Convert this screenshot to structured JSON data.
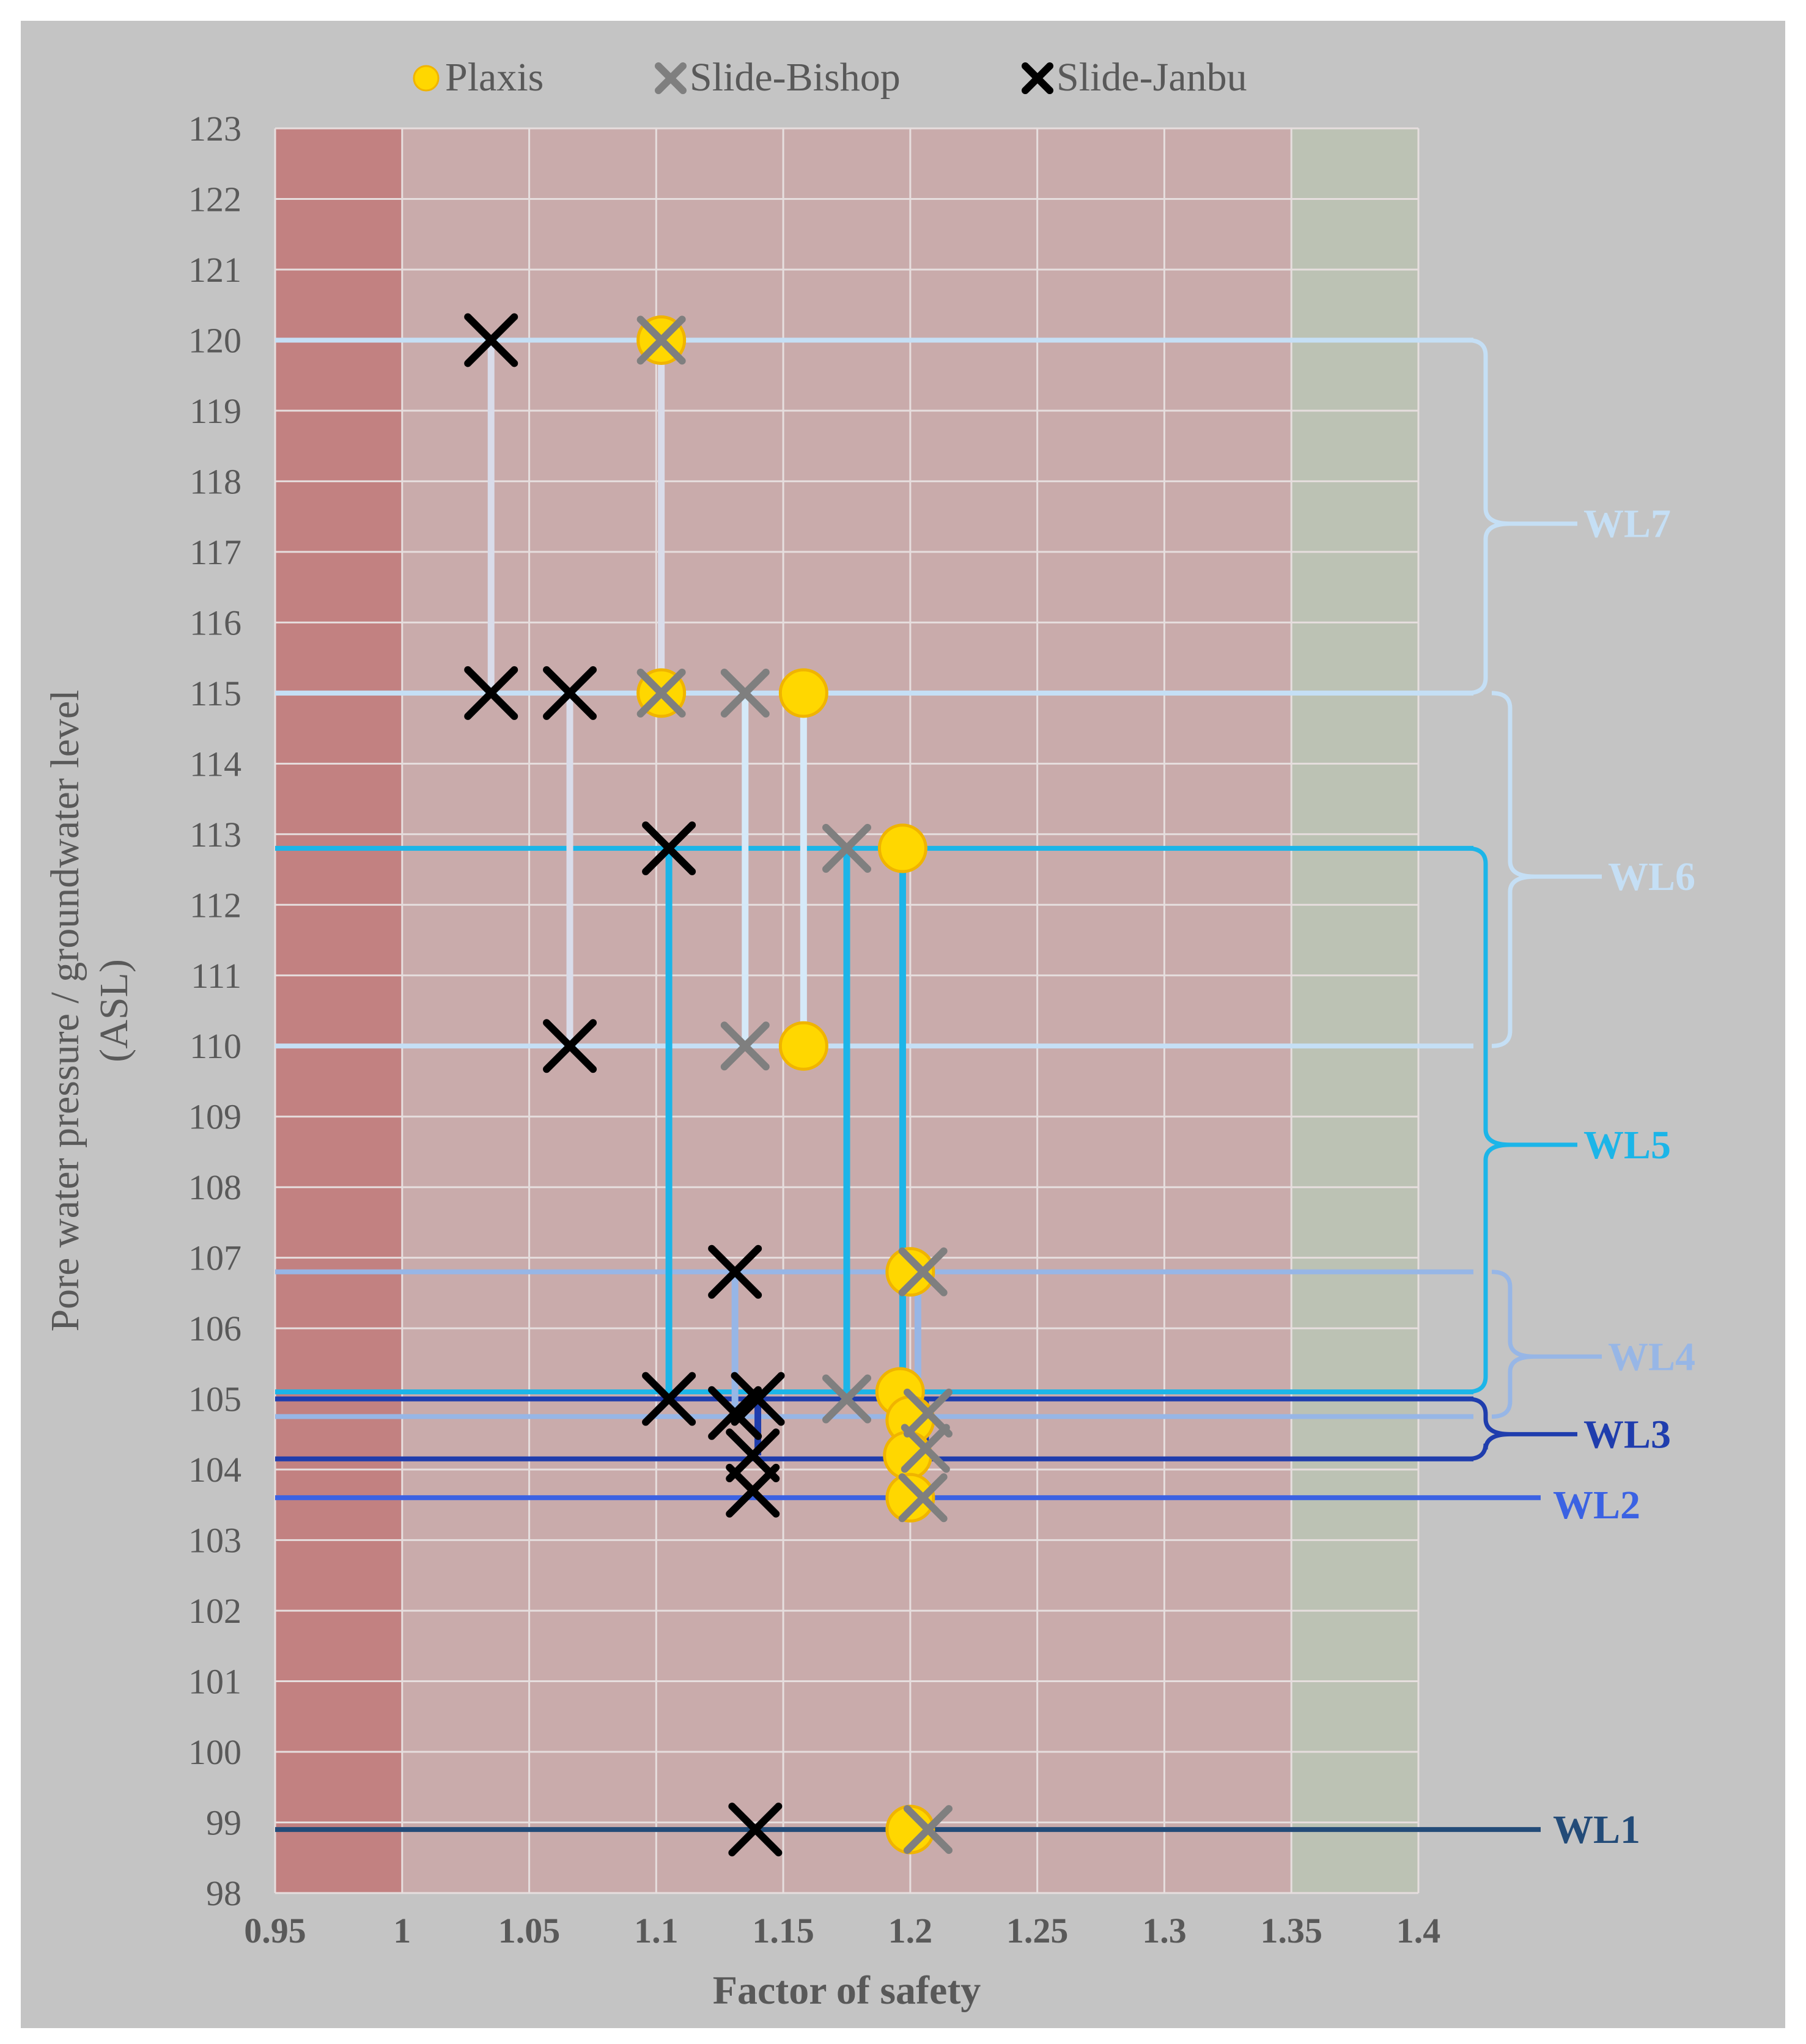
{
  "chart_data": {
    "type": "scatter",
    "title": "",
    "xlabel": "Factor of safety",
    "ylabel_lines": [
      "Pore water pressure / groundwater level",
      "(ASL)"
    ],
    "xlim": [
      0.95,
      1.4
    ],
    "ylim": [
      98,
      123
    ],
    "x_ticks": [
      0.95,
      1,
      1.05,
      1.1,
      1.15,
      1.2,
      1.25,
      1.3,
      1.35,
      1.4
    ],
    "x_tick_labels": [
      "0.95",
      "1",
      "1.05",
      "1.1",
      "1.15",
      "1.2",
      "1.25",
      "1.3",
      "1.35",
      "1.4"
    ],
    "y_ticks": [
      98,
      99,
      100,
      101,
      102,
      103,
      104,
      105,
      106,
      107,
      108,
      109,
      110,
      111,
      112,
      113,
      114,
      115,
      116,
      117,
      118,
      119,
      120,
      121,
      122,
      123
    ],
    "y_tick_labels": [
      "98",
      "99",
      "100",
      "101",
      "102",
      "103",
      "104",
      "105",
      "106",
      "107",
      "108",
      "109",
      "110",
      "111",
      "112",
      "113",
      "114",
      "115",
      "116",
      "117",
      "118",
      "119",
      "120",
      "121",
      "122",
      "123"
    ],
    "grid": true,
    "legend_placement": "top",
    "colors": {
      "background": "#c4c4c4",
      "zone_red_dark": "#c28181",
      "zone_red_light": "#c9abab",
      "zone_green": "#bcc2b4",
      "grid": "#e6dede",
      "plaxis": "#ffd700",
      "plaxis_edge": "#f0b400",
      "bishop": "#7f7f7f",
      "janbu": "#000000",
      "axis_text": "#595959"
    },
    "bands": [
      {
        "x0": 0.95,
        "x1": 1.0,
        "color": "#c28181"
      },
      {
        "x0": 1.0,
        "x1": 1.35,
        "color": "#c9abab"
      },
      {
        "x0": 1.35,
        "x1": 1.4,
        "color": "#bcc2b4"
      }
    ],
    "series": [
      {
        "name": "Plaxis",
        "marker": "circle",
        "color": "#ffd700",
        "points": [
          [
            1.102,
            120
          ],
          [
            1.102,
            115
          ],
          [
            1.158,
            115
          ],
          [
            1.158,
            110
          ],
          [
            1.197,
            112.8
          ],
          [
            1.2,
            106.8
          ],
          [
            1.196,
            105.1
          ],
          [
            1.2,
            104.7
          ],
          [
            1.199,
            104.2
          ],
          [
            1.2,
            103.6
          ],
          [
            1.2,
            98.9
          ]
        ]
      },
      {
        "name": "Slide-Bishop",
        "marker": "x",
        "color": "#7f7f7f",
        "points": [
          [
            1.102,
            120
          ],
          [
            1.102,
            115
          ],
          [
            1.135,
            115
          ],
          [
            1.135,
            110
          ],
          [
            1.175,
            112.8
          ],
          [
            1.205,
            106.8
          ],
          [
            1.175,
            105
          ],
          [
            1.207,
            104.8
          ],
          [
            1.206,
            104.3
          ],
          [
            1.205,
            103.6
          ],
          [
            1.207,
            98.9
          ]
        ]
      },
      {
        "name": "Slide-Janbu",
        "marker": "x",
        "color": "#000000",
        "points": [
          [
            1.035,
            120
          ],
          [
            1.035,
            115
          ],
          [
            1.066,
            115
          ],
          [
            1.066,
            110
          ],
          [
            1.105,
            112.8
          ],
          [
            1.131,
            106.8
          ],
          [
            1.105,
            105
          ],
          [
            1.131,
            104.8
          ],
          [
            1.14,
            105
          ],
          [
            1.138,
            104.2
          ],
          [
            1.138,
            103.7
          ],
          [
            1.139,
            98.9
          ]
        ]
      }
    ],
    "water_levels": [
      {
        "name": "WL7",
        "color": "#c5dff5",
        "y_values": [
          120,
          115
        ],
        "label_y": 117.4,
        "connectors": [
          {
            "x": 1.035,
            "y1": 120,
            "y2": 115,
            "color": "#d9dcea"
          },
          {
            "x": 1.102,
            "y1": 120,
            "y2": 115,
            "color": "#d9dcea"
          }
        ]
      },
      {
        "name": "WL6",
        "color": "#c5dff5",
        "y_values": [
          115,
          110
        ],
        "label_y": 112.4,
        "connectors": [
          {
            "x": 1.066,
            "y1": 115,
            "y2": 110,
            "color": "#d9dcea"
          },
          {
            "x": 1.135,
            "y1": 115,
            "y2": 110,
            "color": "#d5e9f8"
          },
          {
            "x": 1.158,
            "y1": 115,
            "y2": 110,
            "color": "#d5e9f8"
          }
        ]
      },
      {
        "name": "WL5",
        "color": "#1cb5e8",
        "y_values": [
          112.8,
          105.1
        ],
        "label_y": 108.6,
        "connectors": [
          {
            "x": 1.105,
            "y1": 112.8,
            "y2": 105,
            "color": "#1cb5e8"
          },
          {
            "x": 1.175,
            "y1": 112.8,
            "y2": 105,
            "color": "#1cb5e8"
          },
          {
            "x": 1.197,
            "y1": 112.8,
            "y2": 105,
            "color": "#1cb5e8"
          }
        ]
      },
      {
        "name": "WL4",
        "color": "#97b6e6",
        "y_values": [
          106.8,
          104.75
        ],
        "label_y": 105.6,
        "connectors": [
          {
            "x": 1.131,
            "y1": 106.8,
            "y2": 104.8,
            "color": "#97b6e6"
          },
          {
            "x": 1.203,
            "y1": 106.8,
            "y2": 104.8,
            "color": "#97b6e6"
          }
        ]
      },
      {
        "name": "WL3",
        "color": "#1f3dad",
        "y_values": [
          105.0,
          104.15
        ],
        "label_y": 104.5,
        "connectors": [
          {
            "x": 1.14,
            "y1": 105,
            "y2": 104.2,
            "color": "#1f3dad"
          },
          {
            "x": 1.198,
            "y1": 105,
            "y2": 104.2,
            "color": "#1f3dad"
          },
          {
            "x": 1.206,
            "y1": 105,
            "y2": 104.3,
            "color": "#1f3dad"
          }
        ]
      },
      {
        "name": "WL2",
        "color": "#3b62e3",
        "y_values": [
          103.6
        ],
        "label_y": 103.5,
        "connectors": []
      },
      {
        "name": "WL1",
        "color": "#234b78",
        "y_values": [
          98.9
        ],
        "label_y": 98.9,
        "connectors": []
      }
    ]
  }
}
